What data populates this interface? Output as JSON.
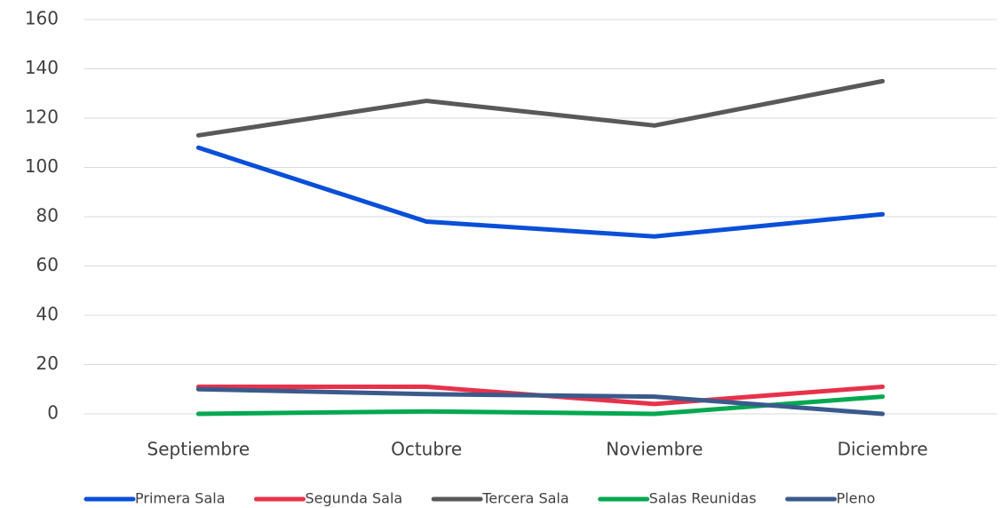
{
  "chart_data": {
    "type": "line",
    "categories": [
      "Septiembre",
      "Octubre",
      "Noviembre",
      "Diciembre"
    ],
    "series": [
      {
        "name": "Primera Sala",
        "color": "#0a4fd8",
        "values": [
          108,
          78,
          72,
          81
        ]
      },
      {
        "name": "Segunda Sala",
        "color": "#e8324a",
        "values": [
          11,
          11,
          4,
          11
        ]
      },
      {
        "name": "Tercera Sala",
        "color": "#595959",
        "values": [
          113,
          127,
          117,
          135
        ]
      },
      {
        "name": "Salas Reunidas",
        "color": "#00a84f",
        "values": [
          0,
          1,
          0,
          7
        ]
      },
      {
        "name": "Pleno",
        "color": "#3a5a8c",
        "values": [
          10,
          8,
          7,
          0
        ]
      }
    ],
    "ylim": [
      0,
      160
    ],
    "yticks": [
      0,
      20,
      40,
      60,
      80,
      100,
      120,
      140,
      160
    ],
    "grid": true,
    "legend": "bottom"
  }
}
